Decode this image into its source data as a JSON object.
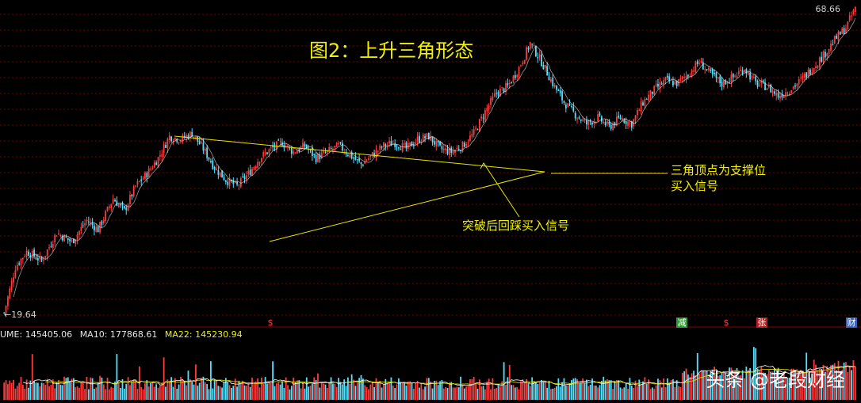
{
  "title": "图2：上升三角形态",
  "annotations": {
    "breakout": "突破后回踩买入信号",
    "apex_line1": "三角顶点为支撑位",
    "apex_line2": "买入信号"
  },
  "price_labels": {
    "max": "68.66",
    "min": "19.64"
  },
  "volume_bar": {
    "vol": "UME: 145405.06",
    "ma10": "MA10: 177868.61",
    "ma22": "MA22: 145230.94"
  },
  "signals": [
    "$",
    "减",
    "$",
    "张",
    "财"
  ],
  "watermark": "头条 @老段财经",
  "colors": {
    "up": "#ff3b3b",
    "down": "#54e1ff",
    "trend": "#e6e600",
    "grid": "#7a0000"
  },
  "chart_data": {
    "type": "candlestick",
    "title": "图2：上升三角形态",
    "ylim": [
      19.64,
      68.66
    ],
    "close_path": [
      [
        0,
        19.64
      ],
      [
        6,
        27.0
      ],
      [
        12,
        29.5
      ],
      [
        20,
        28.0
      ],
      [
        28,
        32.5
      ],
      [
        36,
        31.0
      ],
      [
        44,
        34.5
      ],
      [
        50,
        33.0
      ],
      [
        58,
        38.0
      ],
      [
        64,
        36.0
      ],
      [
        70,
        40.0
      ],
      [
        76,
        42.0
      ],
      [
        82,
        44.5
      ],
      [
        88,
        48.0
      ],
      [
        94,
        47.5
      ],
      [
        100,
        48.5
      ],
      [
        106,
        46.0
      ],
      [
        112,
        43.0
      ],
      [
        118,
        41.0
      ],
      [
        124,
        40.0
      ],
      [
        130,
        42.0
      ],
      [
        136,
        44.5
      ],
      [
        142,
        46.0
      ],
      [
        148,
        47.0
      ],
      [
        154,
        45.5
      ],
      [
        160,
        46.5
      ],
      [
        166,
        44.5
      ],
      [
        172,
        45.5
      ],
      [
        178,
        46.5
      ],
      [
        184,
        45.0
      ],
      [
        190,
        43.5
      ],
      [
        196,
        45.0
      ],
      [
        202,
        46.5
      ],
      [
        208,
        47.0
      ],
      [
        214,
        46.0
      ],
      [
        220,
        47.5
      ],
      [
        226,
        48.0
      ],
      [
        232,
        46.0
      ],
      [
        238,
        45.5
      ],
      [
        244,
        46.5
      ],
      [
        250,
        48.5
      ],
      [
        256,
        52.0
      ],
      [
        262,
        55.0
      ],
      [
        268,
        56.0
      ],
      [
        274,
        59.0
      ],
      [
        280,
        63.0
      ],
      [
        286,
        60.0
      ],
      [
        292,
        56.5
      ],
      [
        298,
        53.5
      ],
      [
        304,
        51.5
      ],
      [
        310,
        50.0
      ],
      [
        316,
        51.0
      ],
      [
        322,
        49.5
      ],
      [
        328,
        51.0
      ],
      [
        334,
        50.0
      ],
      [
        340,
        53.5
      ],
      [
        346,
        55.5
      ],
      [
        352,
        57.0
      ],
      [
        358,
        56.5
      ],
      [
        364,
        58.0
      ],
      [
        370,
        60.0
      ],
      [
        376,
        58.0
      ],
      [
        382,
        56.5
      ],
      [
        388,
        57.5
      ],
      [
        394,
        59.0
      ],
      [
        400,
        56.5
      ],
      [
        406,
        56.0
      ],
      [
        412,
        54.5
      ],
      [
        418,
        55.5
      ],
      [
        424,
        57.0
      ],
      [
        430,
        59.0
      ],
      [
        436,
        61.0
      ],
      [
        442,
        63.5
      ],
      [
        448,
        65.5
      ],
      [
        453,
        68.66
      ]
    ],
    "signal_days": [
      113,
      354,
      379,
      397,
      443
    ]
  }
}
